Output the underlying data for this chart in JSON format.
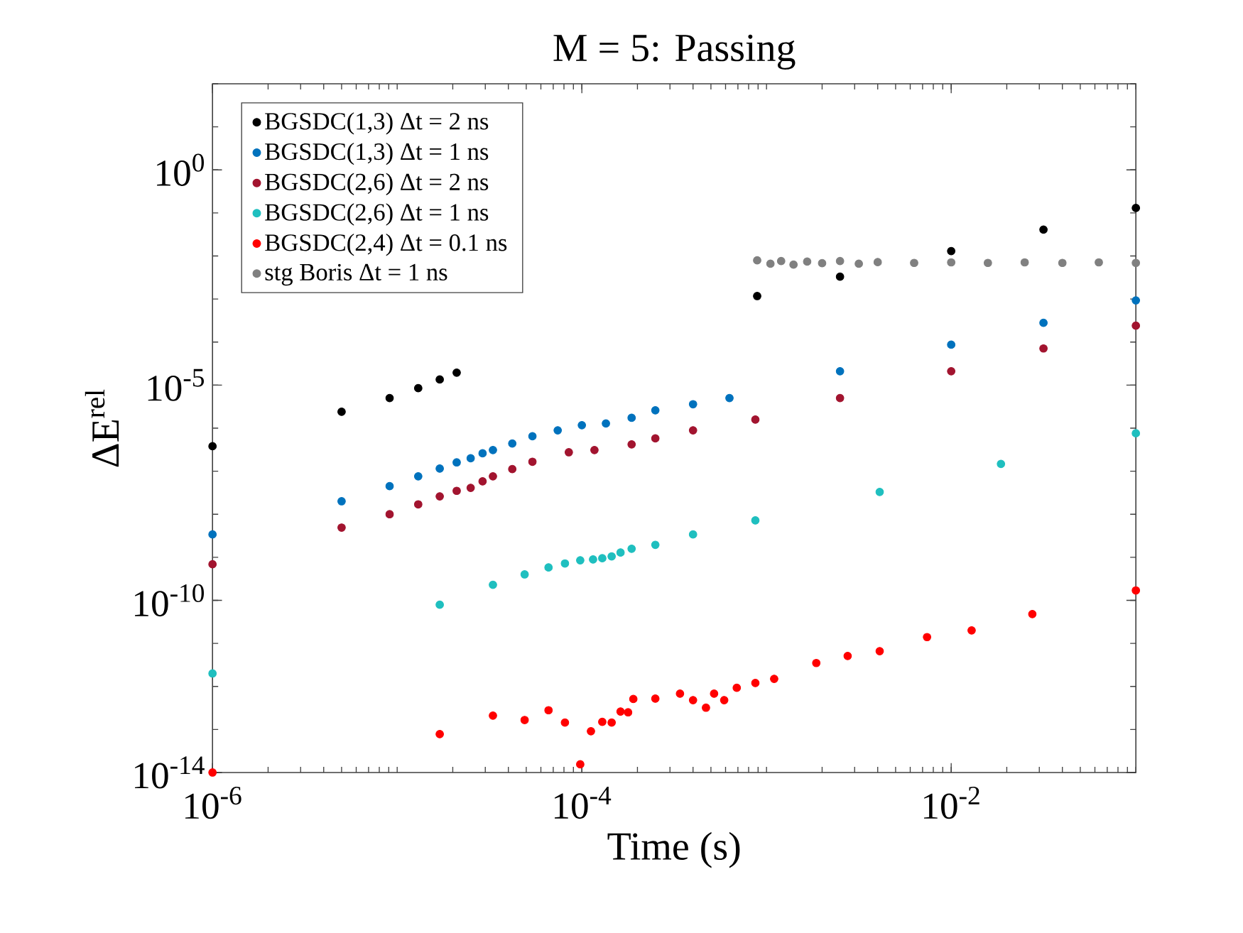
{
  "chart_data": {
    "type": "scatter",
    "title": "M = 5: Passing",
    "xlabel": "Time (s)",
    "ylabel": "ΔE$^{rel}$",
    "log": "xy",
    "marker": "circle",
    "legend": "top left",
    "xlim": [
      1e-06,
      0.1
    ],
    "ylim": [
      1e-14,
      100
    ],
    "xticks": [
      {
        "value": 1e-06,
        "label": "10$^{-6}$"
      },
      {
        "value": 0.0001,
        "label": "10$^{-4}$"
      },
      {
        "value": 0.01,
        "label": "10$^{-2}$"
      }
    ],
    "yticks": [
      {
        "value": 1e-14,
        "label": "10$^{-14}$"
      },
      {
        "value": 1e-10,
        "label": "10$^{-10}$"
      },
      {
        "value": 1e-05,
        "label": "10$^{-5}$"
      },
      {
        "value": 1,
        "label": "10$^{0}$"
      }
    ],
    "series": [
      {
        "name": "BGSDC(1,3)    Δt = 2 ns",
        "color": "#000000",
        "x": [
          1e-06,
          5e-06,
          9.1e-06,
          1.3e-05,
          1.7e-05,
          2.1e-05,
          0.00089,
          0.0025,
          0.01,
          0.0316,
          0.1
        ],
        "values": [
          3.8e-07,
          2.4e-06,
          5e-06,
          8.5e-06,
          1.35e-05,
          1.95e-05,
          0.00117,
          0.0033,
          0.013,
          0.041,
          0.13
        ]
      },
      {
        "name": "BGSDC(1,3)    Δt = 1 ns",
        "color": "#0072bd",
        "x": [
          1e-06,
          5e-06,
          9.1e-06,
          1.3e-05,
          1.7e-05,
          2.1e-05,
          2.5e-05,
          2.9e-05,
          3.3e-05,
          4.2e-05,
          5.4e-05,
          7.4e-05,
          0.0001,
          0.000135,
          0.000186,
          0.00025,
          0.0004,
          0.00063,
          0.0025,
          0.01,
          0.0316,
          0.1
        ],
        "values": [
          3.4e-09,
          2e-08,
          4.5e-08,
          7.6e-08,
          1.15e-07,
          1.6e-07,
          2e-07,
          2.6e-07,
          3.1e-07,
          4.4e-07,
          6.5e-07,
          8.9e-07,
          1.17e-06,
          1.29e-06,
          1.74e-06,
          2.6e-06,
          3.6e-06,
          5e-06,
          2.1e-05,
          8.7e-05,
          0.00028,
          0.00093
        ]
      },
      {
        "name": "BGSDC(2,6)    Δt = 2 ns",
        "color": "#a2142f",
        "x": [
          1e-06,
          5e-06,
          9.1e-06,
          1.3e-05,
          1.7e-05,
          2.1e-05,
          2.5e-05,
          2.9e-05,
          3.3e-05,
          4.2e-05,
          5.4e-05,
          8.5e-05,
          0.000117,
          0.000186,
          0.00025,
          0.0004,
          0.00087,
          0.0025,
          0.01,
          0.0316,
          0.1
        ],
        "values": [
          6.9e-10,
          4.9e-09,
          1e-08,
          1.7e-08,
          2.6e-08,
          3.5e-08,
          4.1e-08,
          5.8e-08,
          7.6e-08,
          1.12e-07,
          1.66e-07,
          2.75e-07,
          3.1e-07,
          4.2e-07,
          5.8e-07,
          8.9e-07,
          1.58e-06,
          5e-06,
          2.1e-05,
          7.1e-05,
          0.00024
        ]
      },
      {
        "name": "BGSDC(2,6)    Δt = 1 ns",
        "color": "#1fbfbf",
        "x": [
          1e-06,
          1.7e-05,
          3.3e-05,
          4.9e-05,
          6.6e-05,
          8.1e-05,
          9.8e-05,
          0.000115,
          0.000129,
          0.000145,
          0.000162,
          0.000186,
          0.00025,
          0.0004,
          0.00087,
          0.0041,
          0.0186,
          0.1
        ],
        "values": [
          2e-12,
          7.9e-11,
          2.3e-10,
          4e-10,
          5.8e-10,
          7.2e-10,
          8.5e-10,
          8.9e-10,
          9.5e-10,
          1.05e-09,
          1.29e-09,
          1.58e-09,
          1.95e-09,
          3.4e-09,
          7.2e-09,
          3.3e-08,
          1.48e-07,
          7.6e-07
        ]
      },
      {
        "name": "BGSDC(2,4)    Δt = 0.1 ns",
        "color": "#ff0000",
        "x": [
          1e-06,
          1.7e-05,
          3.3e-05,
          4.9e-05,
          6.6e-05,
          8.1e-05,
          9.8e-05,
          0.000112,
          0.000129,
          0.000145,
          0.000162,
          0.000178,
          0.00019,
          0.00025,
          0.00034,
          0.0004,
          0.00047,
          0.00052,
          0.00059,
          0.00069,
          0.00087,
          0.0011,
          0.00186,
          0.00275,
          0.0041,
          0.0074,
          0.0129,
          0.0275,
          0.1
        ],
        "values": [
          1e-14,
          7.8e-14,
          2.1e-13,
          1.66e-13,
          2.8e-13,
          1.45e-13,
          1.55e-14,
          9.1e-14,
          1.5e-13,
          1.45e-13,
          2.6e-13,
          2.5e-13,
          5.1e-13,
          5.2e-13,
          6.8e-13,
          4.8e-13,
          3.2e-13,
          6.8e-13,
          4.8e-13,
          9.3e-13,
          1.2e-12,
          1.5e-12,
          3.5e-12,
          5.1e-12,
          6.6e-12,
          1.4e-11,
          2e-11,
          4.8e-11,
          1.7e-10
        ]
      },
      {
        "name": "stg Boris    Δt = 1 ns",
        "color": "#808080",
        "x": [
          0.00089,
          0.00105,
          0.0012,
          0.0014,
          0.00166,
          0.002,
          0.0025,
          0.00316,
          0.004,
          0.0063,
          0.01,
          0.0158,
          0.025,
          0.04,
          0.063,
          0.1
        ],
        "values": [
          0.0079,
          0.0066,
          0.0076,
          0.0063,
          0.0074,
          0.0068,
          0.0076,
          0.0066,
          0.0072,
          0.0069,
          0.0071,
          0.0069,
          0.0071,
          0.0069,
          0.0071,
          0.0069
        ]
      }
    ]
  }
}
